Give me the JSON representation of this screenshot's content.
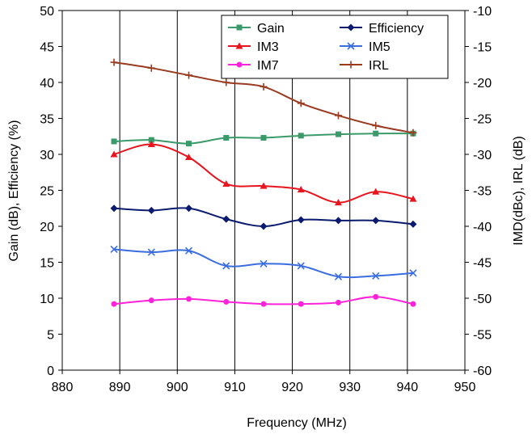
{
  "chart_data": {
    "type": "line",
    "title": "",
    "xlabel": "Frequency (MHz)",
    "ylabel_left": "Gain (dB), Efficiency (%)",
    "ylabel_right": "IMD(dBc), IRL (dB)",
    "xlim": [
      880,
      950
    ],
    "ylim_left": [
      0,
      50
    ],
    "ylim_right": [
      -60,
      -10
    ],
    "x_ticks": [
      880,
      890,
      900,
      910,
      920,
      930,
      940,
      950
    ],
    "y_ticks_left": [
      0,
      5,
      10,
      15,
      20,
      25,
      30,
      35,
      40,
      45,
      50
    ],
    "y_ticks_right": [
      -60,
      -55,
      -50,
      -45,
      -40,
      -35,
      -30,
      -25,
      -20,
      -15,
      -10
    ],
    "grid": "vertical",
    "legend_position": "top-right",
    "series": [
      {
        "name": "Gain",
        "axis": "left",
        "color": "#3a9a6a",
        "marker": "square",
        "x": [
          889,
          895.5,
          902,
          908.5,
          915,
          921.5,
          928,
          934.5,
          941
        ],
        "y": [
          31.8,
          32.0,
          31.5,
          32.3,
          32.3,
          32.6,
          32.8,
          32.9,
          32.9
        ]
      },
      {
        "name": "Efficiency",
        "axis": "left",
        "color": "#0a1a6e",
        "marker": "diamond",
        "x": [
          889,
          895.5,
          902,
          908.5,
          915,
          921.5,
          928,
          934.5,
          941
        ],
        "y": [
          22.5,
          22.2,
          22.5,
          21.0,
          20.0,
          20.9,
          20.8,
          20.8,
          20.3
        ]
      },
      {
        "name": "IM3",
        "axis": "right",
        "color": "#e8141e",
        "marker": "triangle",
        "x": [
          889,
          895.5,
          902,
          908.5,
          915,
          921.5,
          928,
          934.5,
          941
        ],
        "y": [
          -30.0,
          -28.6,
          -30.4,
          -34.1,
          -34.4,
          -34.9,
          -36.7,
          -35.2,
          -36.2
        ]
      },
      {
        "name": "IM5",
        "axis": "right",
        "color": "#3a6de0",
        "marker": "x",
        "x": [
          889,
          895.5,
          902,
          908.5,
          915,
          921.5,
          928,
          934.5,
          941
        ],
        "y": [
          -43.2,
          -43.6,
          -43.4,
          -45.5,
          -45.2,
          -45.5,
          -47.0,
          -46.9,
          -46.5
        ]
      },
      {
        "name": "IM7",
        "axis": "right",
        "color": "#ff22d8",
        "marker": "circle",
        "x": [
          889,
          895.5,
          902,
          908.5,
          915,
          921.5,
          928,
          934.5,
          941
        ],
        "y": [
          -50.8,
          -50.3,
          -50.1,
          -50.5,
          -50.8,
          -50.8,
          -50.6,
          -49.8,
          -50.8
        ]
      },
      {
        "name": "IRL",
        "axis": "right",
        "color": "#9a3a1e",
        "marker": "plus",
        "x": [
          889,
          895.5,
          902,
          908.5,
          915,
          921.5,
          928,
          934.5,
          941
        ],
        "y": [
          -17.2,
          -18.0,
          -19.0,
          -20.0,
          -20.6,
          -22.9,
          -24.6,
          -26.0,
          -27.0
        ]
      }
    ]
  }
}
